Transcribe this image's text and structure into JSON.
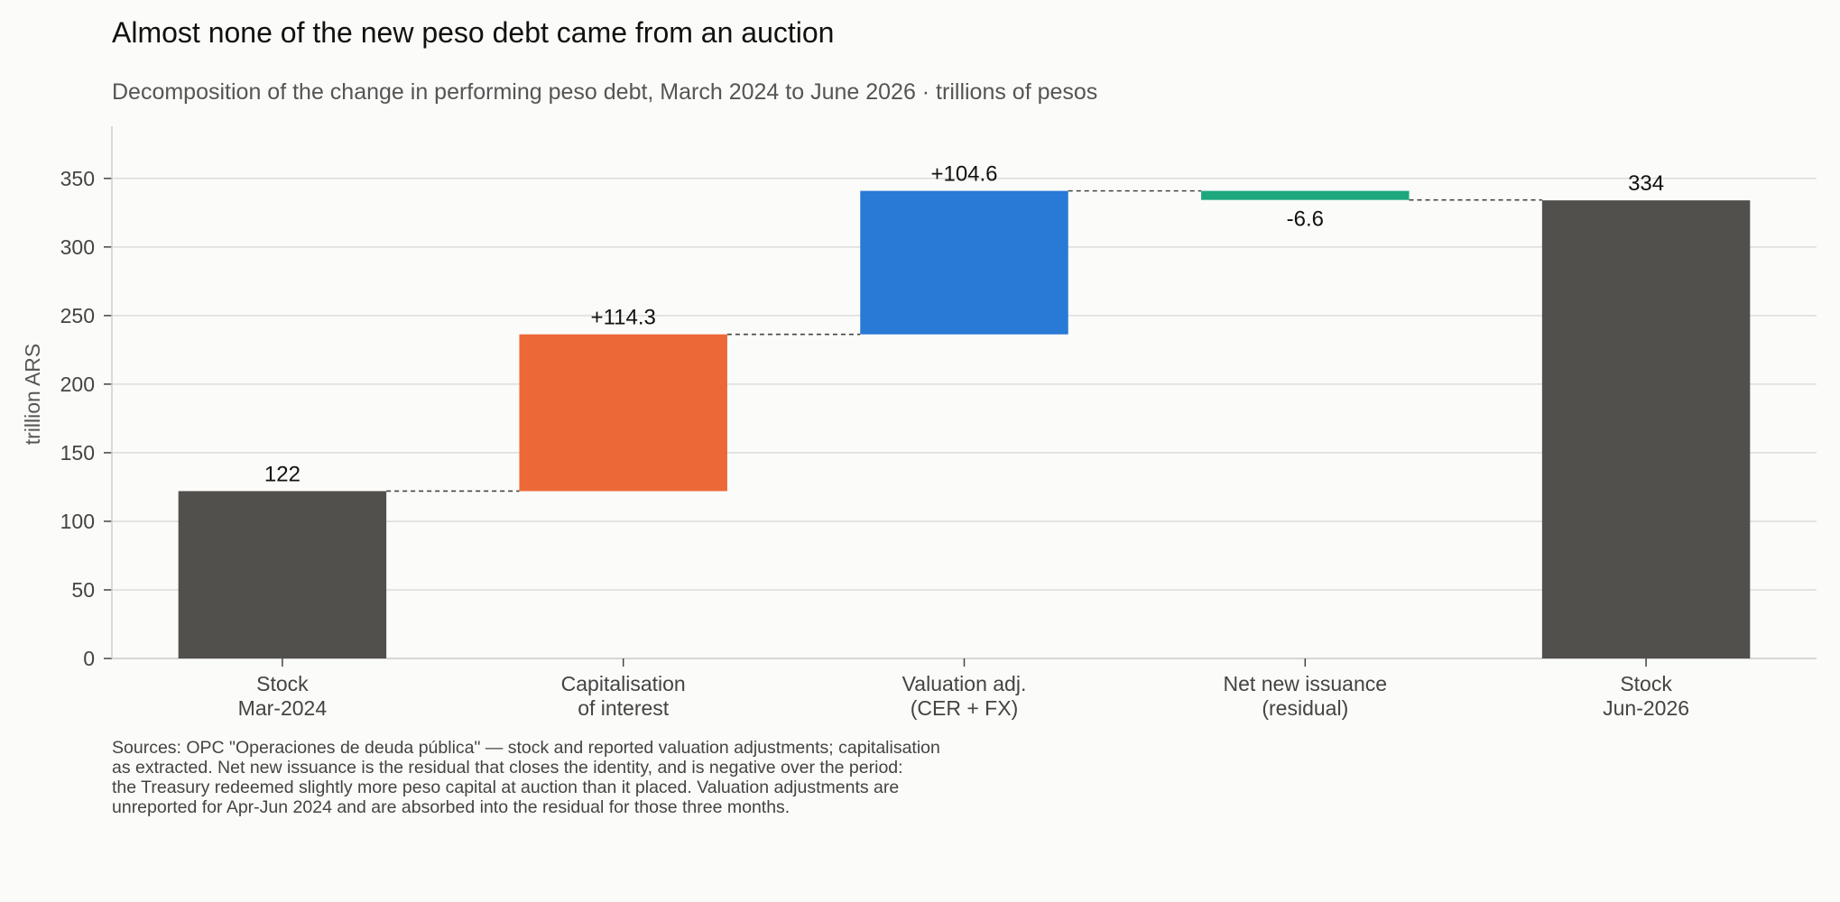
{
  "title": "Almost none of the new peso debt came from an auction",
  "subtitle": "Decomposition of the change in performing peso debt, March 2024 to June 2026 · trillions of pesos",
  "sources": [
    "Sources: OPC \"Operaciones de deuda pública\" — stock and reported valuation adjustments; capitalisation",
    "as extracted. Net new issuance is the residual that closes the identity, and is negative over the period:",
    "the Treasury redeemed slightly more peso capital at auction than it placed. Valuation adjustments are",
    "unreported for Apr-Jun 2024 and are absorbed into the residual for those three months."
  ],
  "chart_data": {
    "type": "waterfall",
    "ylabel": "trillion ARS",
    "ylim": [
      0,
      388
    ],
    "yticks": [
      0,
      50,
      100,
      150,
      200,
      250,
      300,
      350
    ],
    "grid": true,
    "steps": [
      {
        "category": [
          "Stock",
          "Mar-2024"
        ],
        "kind": "total",
        "value": 122,
        "label": "122",
        "color": "#52504c"
      },
      {
        "category": [
          "Capitalisation",
          "of interest"
        ],
        "kind": "delta",
        "value": 114.3,
        "label": "+114.3",
        "color": "#ec6836"
      },
      {
        "category": [
          "Valuation adj.",
          "(CER + FX)"
        ],
        "kind": "delta",
        "value": 104.6,
        "label": "+104.6",
        "color": "#2979d6"
      },
      {
        "category": [
          "Net new issuance",
          "(residual)"
        ],
        "kind": "delta",
        "value": -6.6,
        "label": "-6.6",
        "color": "#1ea77e"
      },
      {
        "category": [
          "Stock",
          "Jun-2026"
        ],
        "kind": "total",
        "value": 334,
        "label": "334",
        "color": "#52504c"
      }
    ]
  }
}
